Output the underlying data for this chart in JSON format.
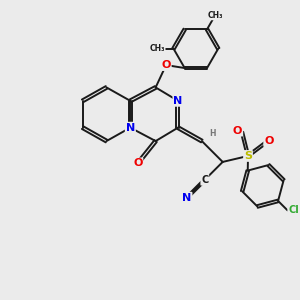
{
  "background_color": "#ebebeb",
  "bond_color": "#1a1a1a",
  "bond_width": 1.4,
  "atom_colors": {
    "N": "#0000ee",
    "O": "#ee0000",
    "S": "#bbbb00",
    "Cl": "#33aa33",
    "C": "#1a1a1a",
    "H": "#777777"
  },
  "font_size": 7.0,
  "fig_width": 3.0,
  "fig_height": 3.0
}
